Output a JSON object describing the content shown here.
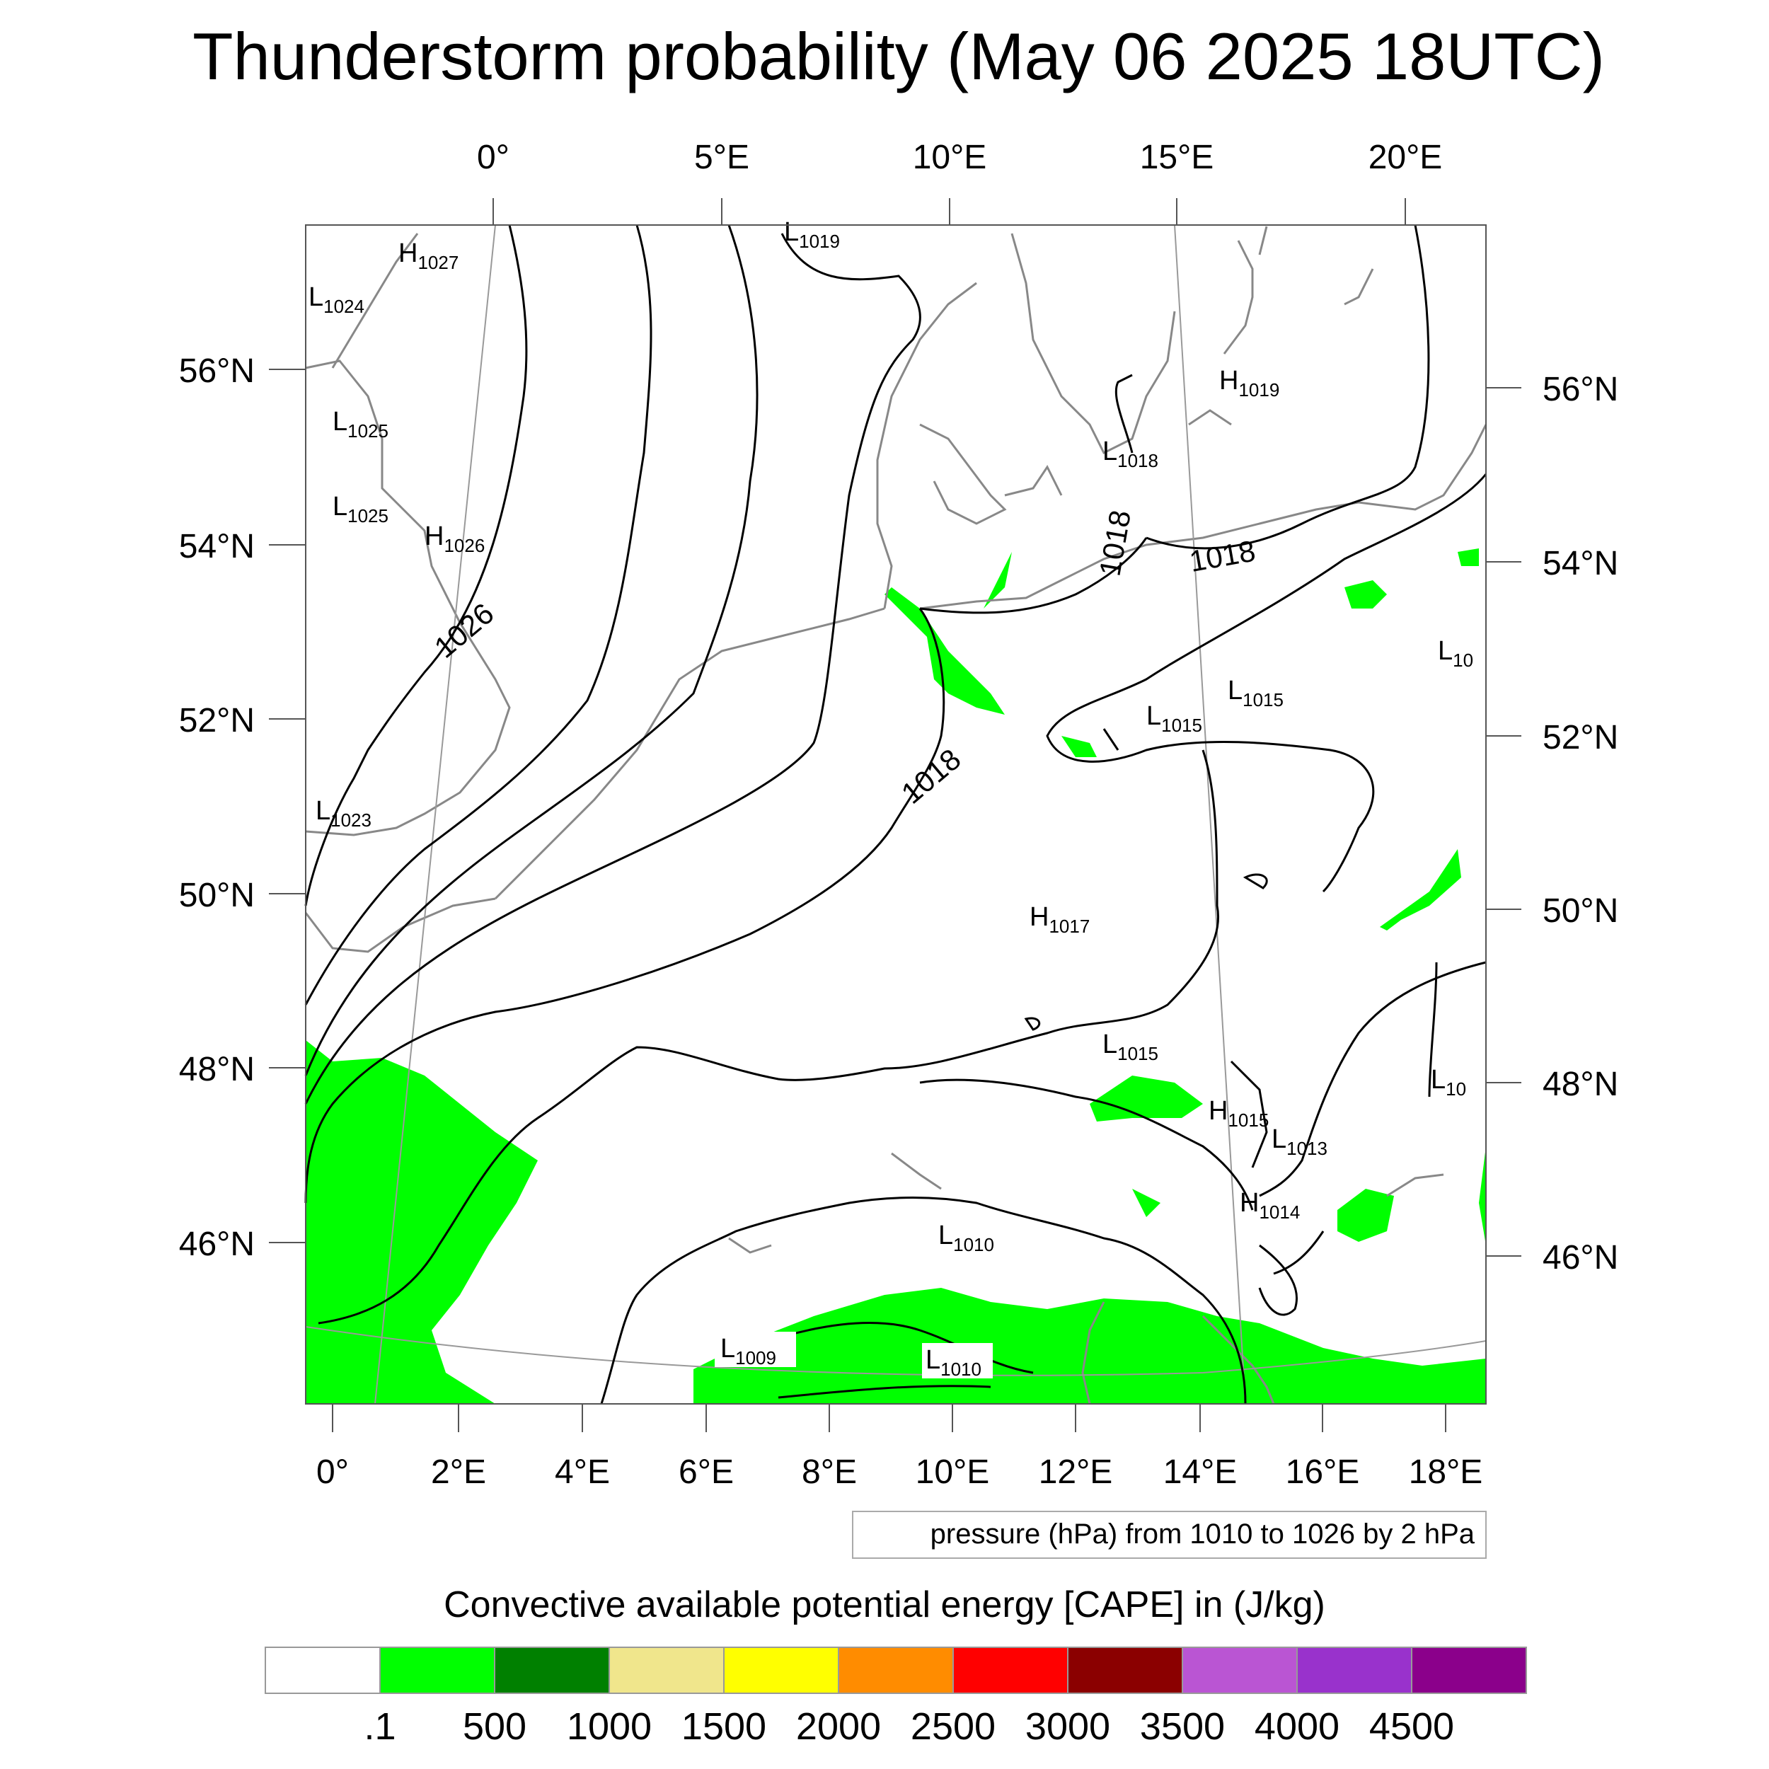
{
  "title": "Thunderstorm probability (May 06 2025 18UTC)",
  "top_axis_labels": [
    "0°",
    "5°E",
    "10°E",
    "15°E",
    "20°E"
  ],
  "bottom_axis_labels": [
    "0°",
    "2°E",
    "4°E",
    "6°E",
    "8°E",
    "10°E",
    "12°E",
    "14°E",
    "16°E",
    "18°E"
  ],
  "left_axis_labels": [
    "56°N",
    "54°N",
    "52°N",
    "50°N",
    "48°N",
    "46°N"
  ],
  "right_axis_labels": [
    "56°N",
    "54°N",
    "52°N",
    "50°N",
    "48°N",
    "46°N"
  ],
  "pressure_note": "pressure (hPa) from 1010 to 1026 by 2 hPa",
  "contour_labels": [
    "1026",
    "1018",
    "1018",
    "1018"
  ],
  "pressure_centers": [
    {
      "t": "H",
      "v": "1027"
    },
    {
      "t": "L",
      "v": "1024"
    },
    {
      "t": "L",
      "v": "1025"
    },
    {
      "t": "L",
      "v": "1025"
    },
    {
      "t": "H",
      "v": "1026"
    },
    {
      "t": "L",
      "v": "1023"
    },
    {
      "t": "L",
      "v": "1019"
    },
    {
      "t": "H",
      "v": "1019"
    },
    {
      "t": "L",
      "v": "1018"
    },
    {
      "t": "L",
      "v": "1015"
    },
    {
      "t": "L",
      "v": "1015"
    },
    {
      "t": "L",
      "v": "10"
    },
    {
      "t": "H",
      "v": "1017"
    },
    {
      "t": "L",
      "v": "1015"
    },
    {
      "t": "H",
      "v": "1015"
    },
    {
      "t": "L",
      "v": "1013"
    },
    {
      "t": "L",
      "v": "10"
    },
    {
      "t": "H",
      "v": "1014"
    },
    {
      "t": "L",
      "v": "1010"
    },
    {
      "t": "L",
      "v": "1009"
    },
    {
      "t": "L",
      "v": "1010"
    }
  ],
  "legend": {
    "title": "Convective available potential energy [CAPE] in (J/kg)",
    "labels": [
      ".1",
      "500",
      "1000",
      "1500",
      "2000",
      "2500",
      "3000",
      "3500",
      "4000",
      "4500"
    ],
    "colors": [
      "#ffffff",
      "#00ff00",
      "#008000",
      "#f0e68c",
      "#ffff00",
      "#ff8c00",
      "#ff0000",
      "#8b0000",
      "#ba55d3",
      "#9932cc",
      "#8b008b"
    ]
  }
}
